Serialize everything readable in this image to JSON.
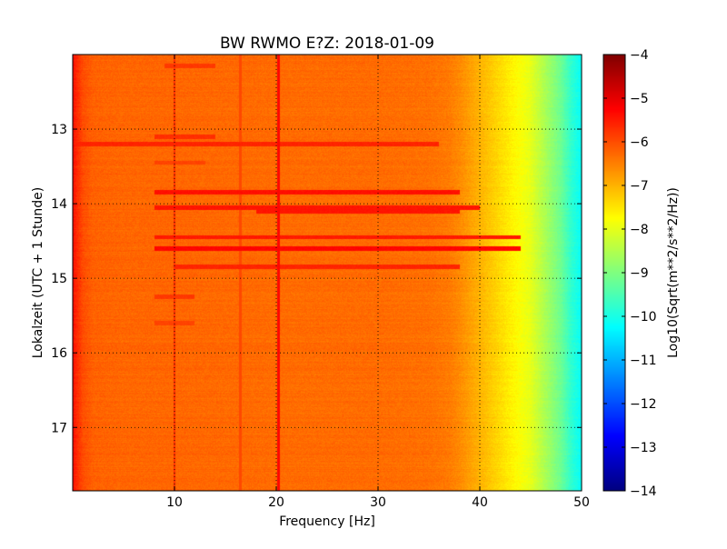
{
  "chart_data": {
    "type": "heatmap",
    "title": "BW RWMO E?Z: 2018-01-09",
    "xlabel": "Frequency [Hz]",
    "ylabel": "Lokalzeit (UTC + 1 Stunde)",
    "colorbar_label": "Log10(Sqrt(m**2/s**2/Hz))",
    "xlim": [
      0,
      50
    ],
    "ylim": [
      12.0,
      17.85
    ],
    "y_inverted": true,
    "x_ticks": [
      10,
      20,
      30,
      40,
      50
    ],
    "x_tick_labels": [
      "10",
      "20",
      "30",
      "40",
      "50"
    ],
    "y_ticks": [
      13,
      14,
      15,
      16,
      17
    ],
    "y_tick_labels": [
      "13",
      "14",
      "15",
      "16",
      "17"
    ],
    "colorbar_range": [
      -14,
      -4
    ],
    "colorbar_ticks": [
      -4,
      -5,
      -6,
      -7,
      -8,
      -9,
      -10,
      -11,
      -12,
      -13,
      -14
    ],
    "colorbar_tick_labels": [
      "−4",
      "−5",
      "−6",
      "−7",
      "−8",
      "−9",
      "−10",
      "−11",
      "−12",
      "−13",
      "−14"
    ],
    "colormap": "jet",
    "grid": true,
    "profile": {
      "frequency_hz": [
        0,
        0.5,
        1,
        2,
        5,
        10,
        20,
        30,
        35,
        37,
        38,
        39,
        40,
        41,
        42,
        43,
        44,
        45,
        46,
        47,
        48,
        49,
        50
      ],
      "log10_amplitude": [
        -5.4,
        -5.7,
        -6.0,
        -6.2,
        -6.25,
        -6.25,
        -6.3,
        -6.3,
        -6.35,
        -6.45,
        -6.6,
        -6.8,
        -7.0,
        -7.2,
        -7.4,
        -7.6,
        -7.8,
        -8.0,
        -8.4,
        -8.8,
        -9.2,
        -9.8,
        -10.2
      ]
    },
    "bands": [
      {
        "time": 12.15,
        "fmin": 9,
        "fmax": 14,
        "value": -5.8
      },
      {
        "time": 13.1,
        "fmin": 8,
        "fmax": 14,
        "value": -5.7
      },
      {
        "time": 13.2,
        "fmin": 0,
        "fmax": 36,
        "value": -5.6
      },
      {
        "time": 13.45,
        "fmin": 8,
        "fmax": 13,
        "value": -5.9
      },
      {
        "time": 13.85,
        "fmin": 8,
        "fmax": 38,
        "value": -5.4
      },
      {
        "time": 14.05,
        "fmin": 8,
        "fmax": 40,
        "value": -5.45
      },
      {
        "time": 14.1,
        "fmin": 18,
        "fmax": 38,
        "value": -5.45
      },
      {
        "time": 14.45,
        "fmin": 8,
        "fmax": 44,
        "value": -5.5
      },
      {
        "time": 14.6,
        "fmin": 8,
        "fmax": 44,
        "value": -5.3
      },
      {
        "time": 14.85,
        "fmin": 10,
        "fmax": 38,
        "value": -5.6
      },
      {
        "time": 15.25,
        "fmin": 8,
        "fmax": 12,
        "value": -5.8
      },
      {
        "time": 15.6,
        "fmin": 8,
        "fmax": 12,
        "value": -5.9
      }
    ],
    "lines": [
      {
        "frequency": 10,
        "value": -5.7
      },
      {
        "frequency": 16.5,
        "value": -5.95
      },
      {
        "frequency": 20.2,
        "value": -5.3
      }
    ]
  }
}
